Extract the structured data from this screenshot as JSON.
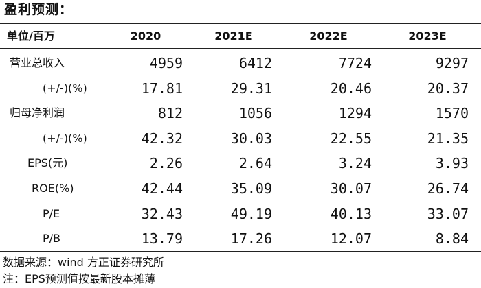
{
  "title": "盈利预测：",
  "table": {
    "header": [
      "单位/百万",
      "2020",
      "2021E",
      "2022E",
      "2023E"
    ],
    "rows": [
      [
        "营业总收入",
        4959,
        6412,
        7724,
        9297
      ],
      [
        "(+/-)(%)",
        17.81,
        29.31,
        20.46,
        20.37
      ],
      [
        "归母净利润",
        812,
        1056,
        1294,
        1570
      ],
      [
        "(+/-)(%)",
        42.32,
        30.03,
        22.55,
        21.35
      ],
      [
        "EPS(元)",
        2.26,
        2.64,
        3.24,
        3.93
      ],
      [
        "ROE(%)",
        42.44,
        35.09,
        30.07,
        26.74
      ],
      [
        "P/E",
        32.43,
        49.19,
        40.13,
        33.07
      ],
      [
        "P/B",
        13.79,
        17.26,
        12.07,
        8.84
      ]
    ]
  },
  "notes": [
    "数据来源：wind 方正证券研究所",
    "注：EPS预测值按最新股本摊薄"
  ]
}
